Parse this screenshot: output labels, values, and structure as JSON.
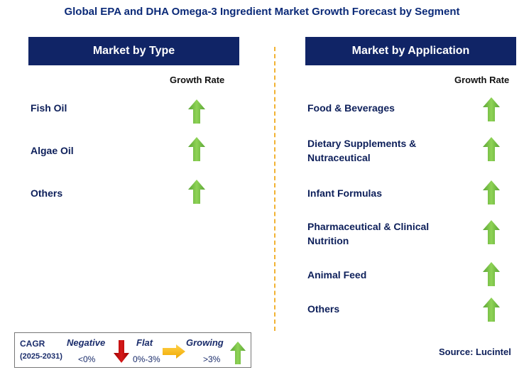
{
  "title": "Global EPA and DHA Omega-3 Ingredient Market Growth Forecast by Segment",
  "left_panel": {
    "header": "Market by Type",
    "growth_label": "Growth Rate",
    "items": [
      {
        "label": "Fish Oil",
        "trend": "growing"
      },
      {
        "label": "Algae Oil",
        "trend": "growing"
      },
      {
        "label": "Others",
        "trend": "growing"
      }
    ]
  },
  "right_panel": {
    "header": "Market by Application",
    "growth_label": "Growth Rate",
    "items": [
      {
        "label_line1": "Food & Beverages",
        "label_line2": "",
        "trend": "growing"
      },
      {
        "label_line1": "Dietary Supplements &",
        "label_line2": "Nutraceutical",
        "trend": "growing"
      },
      {
        "label_line1": "Infant Formulas",
        "label_line2": "",
        "trend": "growing"
      },
      {
        "label_line1": "Pharmaceutical & Clinical",
        "label_line2": "Nutrition",
        "trend": "growing"
      },
      {
        "label_line1": "Animal Feed",
        "label_line2": "",
        "trend": "growing"
      },
      {
        "label_line1": "Others",
        "label_line2": "",
        "trend": "growing"
      }
    ]
  },
  "legend": {
    "cagr_label": "CAGR",
    "period": "(2025-2031)",
    "negative_label": "Negative",
    "negative_range": "<0%",
    "flat_label": "Flat",
    "flat_range": "0%-3%",
    "growing_label": "Growing",
    "growing_range": ">3%"
  },
  "source": "Source: Lucintel",
  "colors": {
    "header_bg": "#102466",
    "title": "#0b2a78",
    "growing": "#78c043",
    "negative": "#c00000",
    "flat": "#ffc000",
    "divider": "#f2b233"
  }
}
